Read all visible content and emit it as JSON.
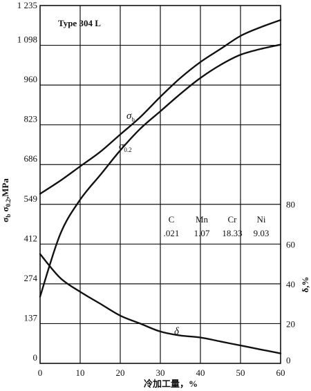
{
  "chart_data": {
    "type": "line",
    "annotation": "Type 304 L",
    "xlabel": "冷加工量，%",
    "xlim": [
      0,
      60
    ],
    "x_ticks": [
      "0",
      "10",
      "20",
      "30",
      "40",
      "50",
      "60"
    ],
    "left_axis": {
      "label_parts": [
        "σ",
        "b",
        " σ",
        "0.2",
        ",MPa"
      ],
      "ylim": [
        0,
        1235
      ],
      "ticks": [
        "0",
        "137",
        "274",
        "412",
        "549",
        "686",
        "823",
        "960",
        "1 098",
        "1 235"
      ]
    },
    "right_axis": {
      "label_parts": [
        "δ",
        ",%"
      ],
      "ylim": [
        0,
        80
      ],
      "ticks": [
        "0",
        "20",
        "40",
        "60",
        "80"
      ]
    },
    "composition": {
      "headers": [
        "C",
        "Mn",
        "Cr",
        "Ni"
      ],
      "values": [
        ".021",
        "1.07",
        "18.33",
        "9.03"
      ]
    },
    "series": [
      {
        "name_parts": [
          "σ",
          "b"
        ],
        "axis": "left",
        "x": [
          0,
          5,
          10,
          15,
          20,
          25,
          30,
          35,
          40,
          45,
          50,
          55,
          60
        ],
        "y": [
          585,
          630,
          680,
          730,
          790,
          850,
          920,
          985,
          1040,
          1085,
          1130,
          1160,
          1185
        ]
      },
      {
        "name_parts": [
          "σ",
          "0.2"
        ],
        "axis": "left",
        "x": [
          0,
          5,
          10,
          15,
          20,
          25,
          30,
          35,
          40,
          45,
          50,
          55,
          60
        ],
        "y": [
          230,
          445,
          565,
          650,
          735,
          810,
          870,
          930,
          985,
          1030,
          1065,
          1085,
          1100
        ]
      },
      {
        "name_parts": [
          "δ"
        ],
        "axis": "right",
        "x": [
          0,
          5,
          10,
          15,
          20,
          25,
          30,
          35,
          40,
          45,
          50,
          55,
          60
        ],
        "y": [
          55,
          43,
          36,
          30,
          24,
          20,
          16,
          14,
          13,
          11,
          9,
          7,
          5
        ]
      }
    ]
  }
}
